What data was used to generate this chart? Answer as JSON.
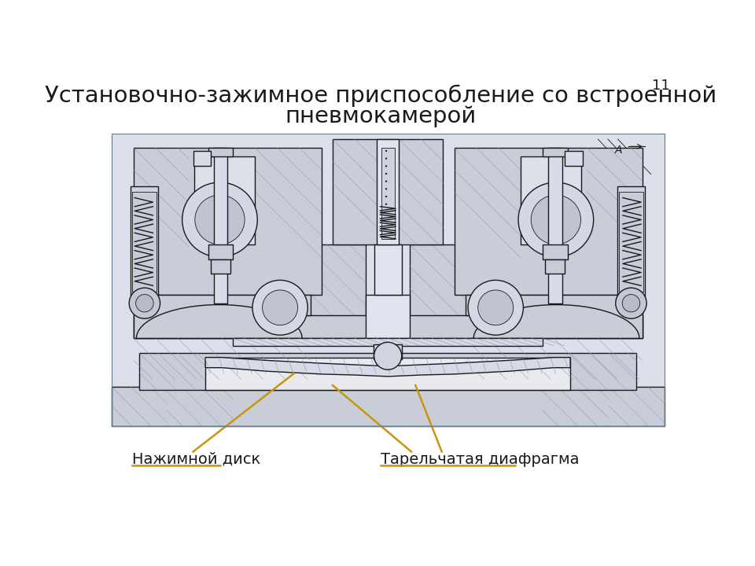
{
  "title_line1": "Установочно-зажимное приспособление со встроенной",
  "title_line2": "пневмокамерой",
  "page_number": "11",
  "label1_text": "Нажимной диск",
  "label2_text": "Тарельчатая диафрагма",
  "annotation_color": "#C8960C",
  "background_color": "#ffffff",
  "title_fontsize": 21,
  "label_fontsize": 14,
  "page_fontsize": 13,
  "paper_bg": "#dce0ea",
  "hatch_color": "#9098a8",
  "line_color": "#1a1a1a"
}
